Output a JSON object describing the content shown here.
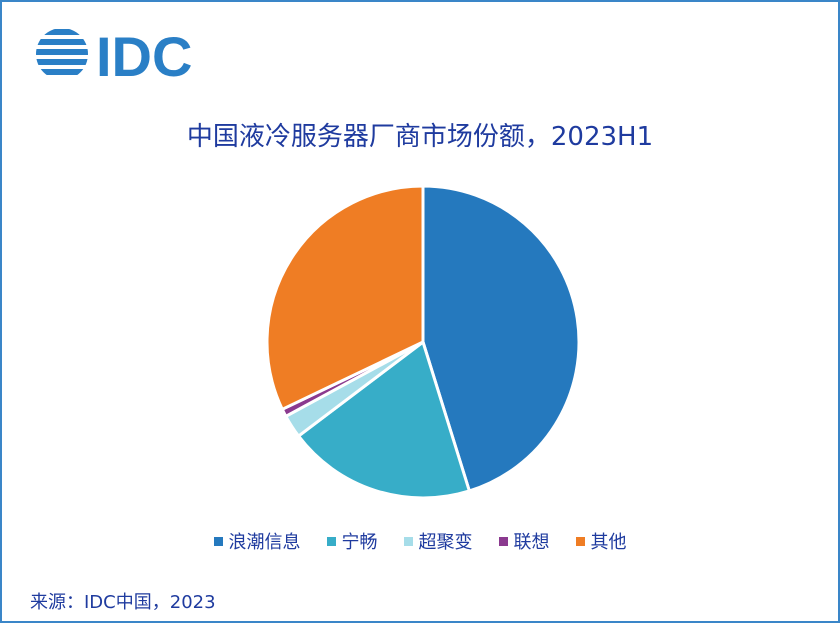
{
  "logo": {
    "text": "IDC",
    "color": "#2a7fc6"
  },
  "chart_data": {
    "type": "pie",
    "title": "中国液冷服务器厂商市场份额，2023H1",
    "legend_placement": "bottom",
    "slices": [
      {
        "label": "浪潮信息",
        "value": 45.2,
        "color": "#2579be"
      },
      {
        "label": "宁畅",
        "value": 19.5,
        "color": "#37adc8"
      },
      {
        "label": "超聚变",
        "value": 2.4,
        "color": "#a6dde9"
      },
      {
        "label": "联想",
        "value": 0.8,
        "color": "#8b3a8f"
      },
      {
        "label": "其他",
        "value": 32.1,
        "color": "#ef7d24"
      }
    ]
  },
  "source": "来源：IDC中国，2023"
}
